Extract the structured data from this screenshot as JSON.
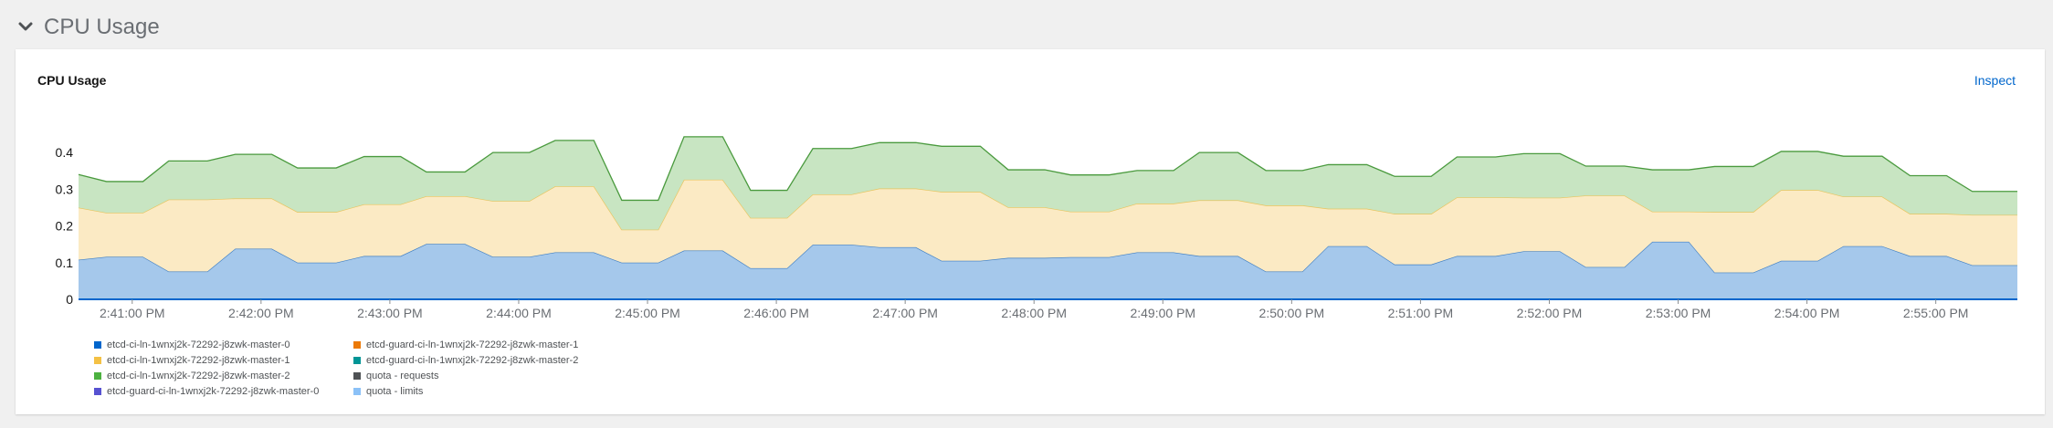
{
  "section": {
    "title": "CPU Usage"
  },
  "card": {
    "title": "CPU Usage",
    "inspect_label": "Inspect"
  },
  "legend": [
    {
      "label": "etcd-ci-ln-1wnxj2k-72292-j8zwk-master-0",
      "color": "#0066cc"
    },
    {
      "label": "etcd-guard-ci-ln-1wnxj2k-72292-j8zwk-master-1",
      "color": "#ec7a08"
    },
    {
      "label": "etcd-ci-ln-1wnxj2k-72292-j8zwk-master-1",
      "color": "#f4c145"
    },
    {
      "label": "etcd-guard-ci-ln-1wnxj2k-72292-j8zwk-master-2",
      "color": "#009596"
    },
    {
      "label": "etcd-ci-ln-1wnxj2k-72292-j8zwk-master-2",
      "color": "#4cb140"
    },
    {
      "label": "quota - requests",
      "color": "#4f5255"
    },
    {
      "label": "etcd-guard-ci-ln-1wnxj2k-72292-j8zwk-master-0",
      "color": "#5752d1"
    },
    {
      "label": "quota - limits",
      "color": "#8bc1f7"
    }
  ],
  "chart_data": {
    "type": "area",
    "stacked": true,
    "x_ticks": [
      "2:41:00 PM",
      "2:42:00 PM",
      "2:43:00 PM",
      "2:44:00 PM",
      "2:45:00 PM",
      "2:46:00 PM",
      "2:47:00 PM",
      "2:48:00 PM",
      "2:49:00 PM",
      "2:50:00 PM",
      "2:51:00 PM",
      "2:52:00 PM",
      "2:53:00 PM",
      "2:54:00 PM",
      "2:55:00 PM"
    ],
    "y_ticks": [
      "0",
      "0.1",
      "0.2",
      "0.3",
      "0.4"
    ],
    "ylim": [
      0,
      0.47
    ],
    "xlim": [
      "2:40:35 PM",
      "2:55:38 PM"
    ],
    "x": [
      "2:40:35 PM",
      "2:40:48 PM",
      "2:41:05 PM",
      "2:41:17 PM",
      "2:41:35 PM",
      "2:41:48 PM",
      "2:42:05 PM",
      "2:42:17 PM",
      "2:42:35 PM",
      "2:42:48 PM",
      "2:43:05 PM",
      "2:43:17 PM",
      "2:43:35 PM",
      "2:43:48 PM",
      "2:44:05 PM",
      "2:44:17 PM",
      "2:44:35 PM",
      "2:44:48 PM",
      "2:45:05 PM",
      "2:45:17 PM",
      "2:45:35 PM",
      "2:45:48 PM",
      "2:46:05 PM",
      "2:46:17 PM",
      "2:46:35 PM",
      "2:46:48 PM",
      "2:47:05 PM",
      "2:47:17 PM",
      "2:47:35 PM",
      "2:47:48 PM",
      "2:48:05 PM",
      "2:48:17 PM",
      "2:48:35 PM",
      "2:48:48 PM",
      "2:49:05 PM",
      "2:49:17 PM",
      "2:49:35 PM",
      "2:49:48 PM",
      "2:50:05 PM",
      "2:50:17 PM",
      "2:50:35 PM",
      "2:50:48 PM",
      "2:51:05 PM",
      "2:51:17 PM",
      "2:51:35 PM",
      "2:51:48 PM",
      "2:52:05 PM",
      "2:52:17 PM",
      "2:52:35 PM",
      "2:52:48 PM",
      "2:53:05 PM",
      "2:53:17 PM",
      "2:53:35 PM",
      "2:53:48 PM",
      "2:54:05 PM",
      "2:54:17 PM",
      "2:54:35 PM",
      "2:54:48 PM",
      "2:55:05 PM",
      "2:55:17 PM",
      "2:55:38 PM"
    ],
    "series": [
      {
        "name": "etcd-ci-ln-1wnxj2k-72292-j8zwk-master-0",
        "fill": "#a5c8eb",
        "stroke": "#3f7fc4",
        "values": [
          0.108,
          0.116,
          0.116,
          0.076,
          0.076,
          0.138,
          0.138,
          0.1,
          0.1,
          0.118,
          0.118,
          0.151,
          0.151,
          0.116,
          0.116,
          0.128,
          0.128,
          0.1,
          0.1,
          0.133,
          0.133,
          0.085,
          0.085,
          0.149,
          0.149,
          0.142,
          0.142,
          0.105,
          0.105,
          0.113,
          0.113,
          0.115,
          0.115,
          0.128,
          0.128,
          0.118,
          0.118,
          0.076,
          0.076,
          0.145,
          0.145,
          0.095,
          0.095,
          0.118,
          0.118,
          0.131,
          0.131,
          0.088,
          0.088,
          0.157,
          0.157,
          0.073,
          0.073,
          0.105,
          0.105,
          0.145,
          0.145,
          0.118,
          0.118,
          0.093,
          0.093
        ]
      },
      {
        "name": "etcd-ci-ln-1wnxj2k-72292-j8zwk-master-1",
        "fill": "#fbeac4",
        "stroke": "#e8c45d",
        "values": [
          0.142,
          0.12,
          0.12,
          0.196,
          0.196,
          0.137,
          0.137,
          0.138,
          0.138,
          0.141,
          0.141,
          0.13,
          0.13,
          0.152,
          0.152,
          0.18,
          0.18,
          0.09,
          0.09,
          0.193,
          0.193,
          0.137,
          0.137,
          0.137,
          0.137,
          0.16,
          0.16,
          0.188,
          0.188,
          0.138,
          0.138,
          0.124,
          0.124,
          0.133,
          0.133,
          0.152,
          0.152,
          0.18,
          0.18,
          0.102,
          0.102,
          0.138,
          0.138,
          0.16,
          0.16,
          0.146,
          0.146,
          0.195,
          0.195,
          0.082,
          0.082,
          0.165,
          0.165,
          0.193,
          0.193,
          0.135,
          0.135,
          0.115,
          0.115,
          0.137,
          0.137
        ]
      },
      {
        "name": "etcd-ci-ln-1wnxj2k-72292-j8zwk-master-2",
        "fill": "#c8e5c2",
        "stroke": "#4a9a3e",
        "values": [
          0.09,
          0.085,
          0.085,
          0.105,
          0.105,
          0.12,
          0.12,
          0.12,
          0.12,
          0.13,
          0.13,
          0.066,
          0.066,
          0.132,
          0.132,
          0.125,
          0.125,
          0.08,
          0.08,
          0.117,
          0.117,
          0.075,
          0.075,
          0.125,
          0.125,
          0.125,
          0.125,
          0.124,
          0.124,
          0.102,
          0.102,
          0.1,
          0.1,
          0.09,
          0.09,
          0.13,
          0.13,
          0.095,
          0.095,
          0.12,
          0.12,
          0.102,
          0.102,
          0.11,
          0.11,
          0.12,
          0.12,
          0.08,
          0.08,
          0.114,
          0.114,
          0.124,
          0.124,
          0.105,
          0.105,
          0.11,
          0.11,
          0.104,
          0.104,
          0.064,
          0.064
        ]
      }
    ]
  }
}
